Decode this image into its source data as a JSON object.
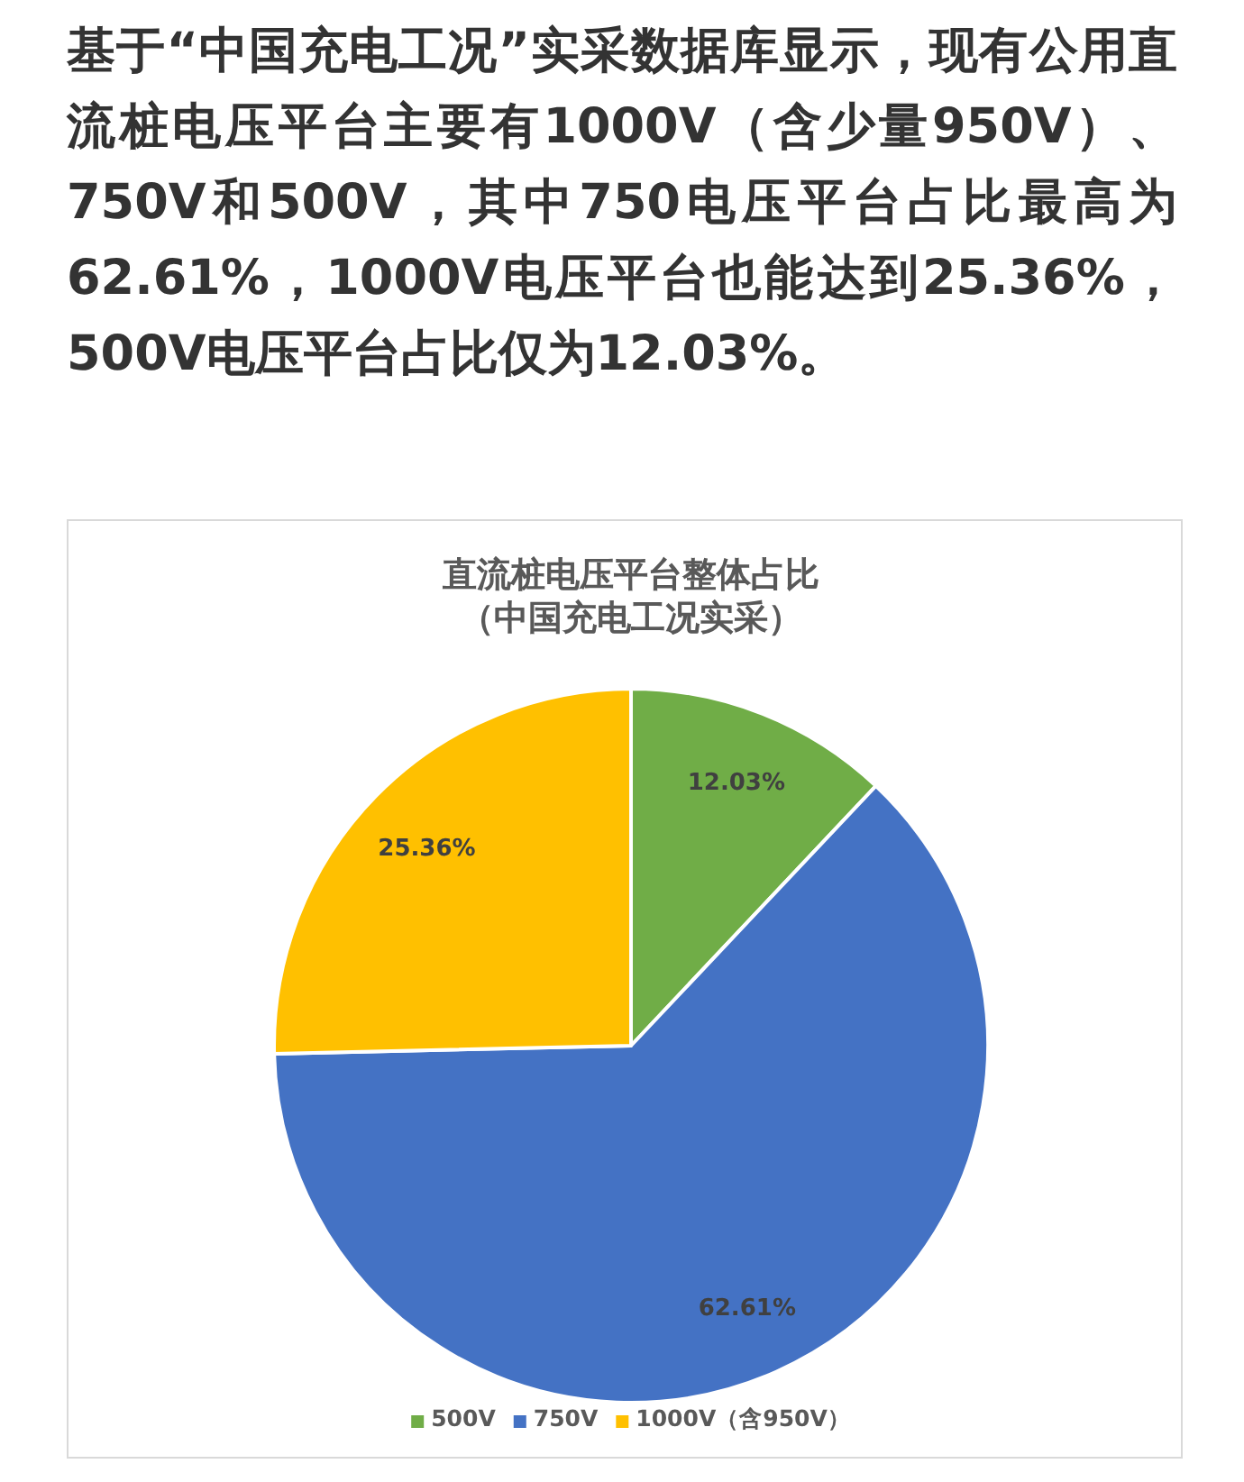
{
  "chart_data": {
    "type": "pie",
    "title": "直流桩电压平台整体占比",
    "subtitle": "（中国充电工况实采）",
    "categories": [
      "500V",
      "750V",
      "1000V（含950V）"
    ],
    "values": [
      12.03,
      62.61,
      25.36
    ],
    "colors": [
      "#70ad47",
      "#4472c4",
      "#ffc000"
    ],
    "value_labels": [
      "12.03%",
      "62.61%",
      "25.36%"
    ],
    "legend": "bottom",
    "annotations": [
      "基于“中国充电工况”实采数据库显示，现有公用直流桩电压平台主要有1000V（含少量950V）、750V和500V，其中750电压平台占比最高为62.61%，1000V电压平台也能达到25.36%，500V电压平台占比仅为12.03%。"
    ]
  }
}
